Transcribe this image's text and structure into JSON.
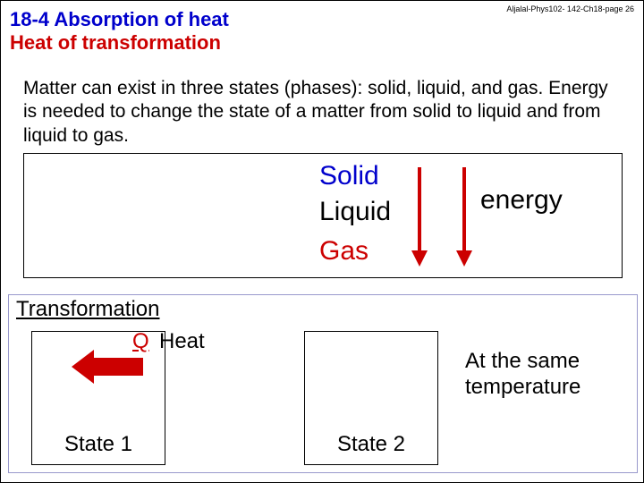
{
  "header_ref": "Aljalal-Phys102- 142-Ch18-page 26",
  "title": {
    "main": "18-4 Absorption of heat",
    "sub": "Heat of transformation"
  },
  "intro": "Matter can exist in three states (phases): solid, liquid, and gas. Energy is needed to change the state of a matter from solid to liquid and from liquid to gas.",
  "phases": {
    "solid": "Solid",
    "liquid": "Liquid",
    "gas": "Gas",
    "energy": "energy"
  },
  "transformation": {
    "title": "Transformation",
    "q": "Q",
    "heat": "Heat",
    "state1": "State 1",
    "state2": "State 2",
    "same_temp_line1": "At the same",
    "same_temp_line2": "temperature"
  },
  "colors": {
    "blue": "#0000cc",
    "red": "#cc0000",
    "black": "#000000",
    "box_border": "#9999cc"
  }
}
